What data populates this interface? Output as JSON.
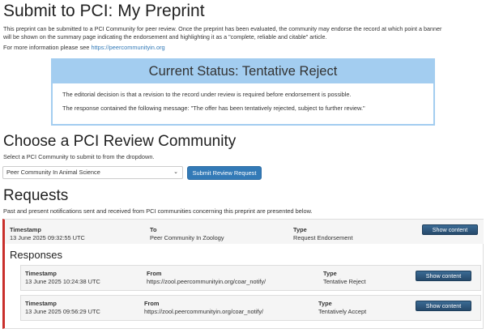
{
  "title": "Submit to PCI: My Preprint",
  "intro": [
    "This preprint can be submitted to a PCI Community for peer review. Once the preprint has been evaluated, the community may endorse the record at which point a banner",
    "will be shown on the summary page indicating the endorsement and highlighting it as a \"complete, reliable and citable\" article."
  ],
  "more_info_prefix": "For more information please see ",
  "more_info_link": "https://peercommunityin.org",
  "status": {
    "heading": "Current Status: Tentative Reject",
    "lines": [
      "The editorial decision is that a revision to the record under review is required before endorsement is possible.",
      "The response contained the following message: \"The offer has been tentatively rejected, subject to further review.\""
    ]
  },
  "choose": {
    "heading": "Choose a PCI Review Community",
    "hint": "Select a PCI Community to submit to from the dropdown.",
    "selected": "Peer Community In Animal Science",
    "submit_label": "Submit Review Request"
  },
  "requests": {
    "heading": "Requests",
    "description": "Past and present notifications sent and received from PCI communities concerning this preprint are presented below.",
    "items": [
      {
        "timestamp_label": "Timestamp",
        "timestamp": "13 June 2025 09:32:55 UTC",
        "to_label": "To",
        "to": "Peer Community In Zoology",
        "type_label": "Type",
        "type": "Request Endorsement",
        "button": "Show content"
      }
    ],
    "responses_heading": "Responses",
    "responses": [
      {
        "timestamp_label": "Timestamp",
        "timestamp": "13 June 2025 10:24:38 UTC",
        "from_label": "From",
        "from": "https://zool.peercommunityin.org/coar_notify/",
        "type_label": "Type",
        "type": "Tentative Reject",
        "button": "Show content"
      },
      {
        "timestamp_label": "Timestamp",
        "timestamp": "13 June 2025 09:56:29 UTC",
        "from_label": "From",
        "from": "https://zool.peercommunityin.org/coar_notify/",
        "type_label": "Type",
        "type": "Tentatively Accept",
        "button": "Show content"
      }
    ]
  },
  "colors": {
    "status_blue": "#a3cdf0",
    "primary": "#337ab7",
    "request_border": "#c9302c",
    "dark_button": "#2c5477"
  }
}
